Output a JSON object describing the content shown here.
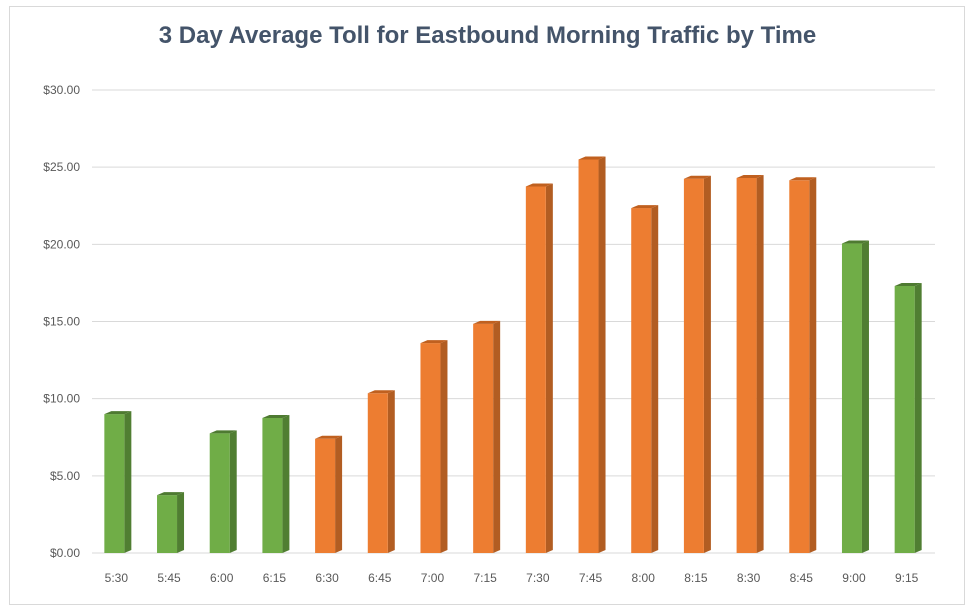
{
  "chart_data": {
    "type": "bar",
    "title": "3 Day Average Toll for Eastbound Morning Traffic by Time",
    "xlabel": "",
    "ylabel": "",
    "ylim": [
      0,
      30
    ],
    "yticks": [
      "$0.00",
      "$5.00",
      "$10.00",
      "$15.00",
      "$20.00",
      "$25.00",
      "$30.00"
    ],
    "ytick_values": [
      0,
      5,
      10,
      15,
      20,
      25,
      30
    ],
    "grid": true,
    "legend": "none",
    "categories": [
      "5:30",
      "5:45",
      "6:00",
      "6:15",
      "6:30",
      "6:45",
      "7:00",
      "7:15",
      "7:30",
      "7:45",
      "8:00",
      "8:15",
      "8:30",
      "8:45",
      "9:00",
      "9:15"
    ],
    "values": [
      9.0,
      3.75,
      7.75,
      8.75,
      7.4,
      10.35,
      13.6,
      14.85,
      23.75,
      25.5,
      22.35,
      24.25,
      24.3,
      24.15,
      20.05,
      17.3
    ],
    "bar_colors": [
      "green",
      "green",
      "green",
      "green",
      "orange",
      "orange",
      "orange",
      "orange",
      "orange",
      "orange",
      "orange",
      "orange",
      "orange",
      "orange",
      "green",
      "green"
    ],
    "colors": {
      "green": "#70ad47",
      "green_side": "#507e32",
      "green_top": "#4e7a31",
      "orange": "#ed7d31",
      "orange_side": "#b25d22",
      "orange_top": "#c0601f",
      "grid": "#d9d9d9"
    }
  }
}
